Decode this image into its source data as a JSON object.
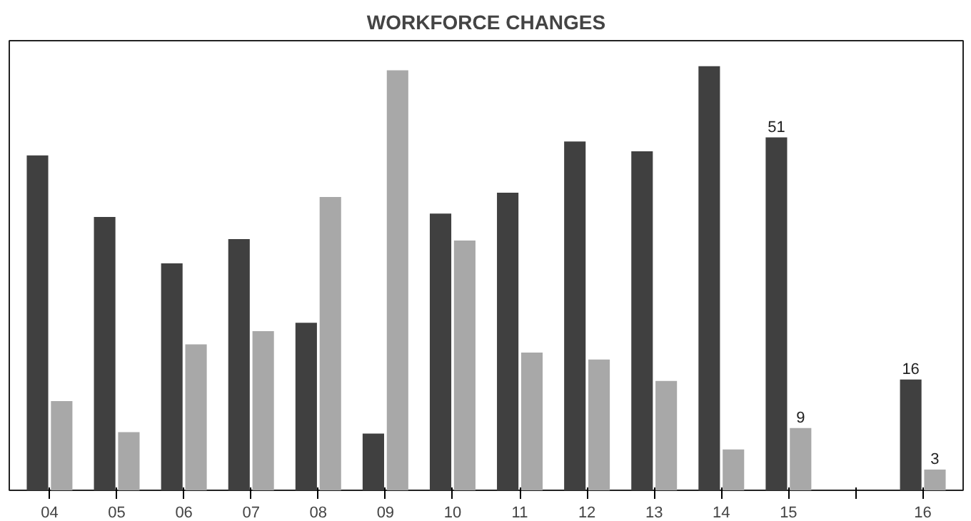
{
  "chart_data": {
    "type": "bar",
    "title": "WORKFORCE CHANGES",
    "categories": [
      "04",
      "05",
      "06",
      "07",
      "08",
      "09",
      "10",
      "11",
      "12",
      "13",
      "14",
      "15",
      null,
      "16"
    ],
    "series": [
      {
        "color": "#404040",
        "values": [
          48.4,
          39.5,
          32.8,
          36.3,
          24.2,
          8.2,
          40,
          43,
          50.4,
          49,
          61.3,
          51,
          null,
          16
        ],
        "value_labels": [
          null,
          null,
          null,
          null,
          null,
          null,
          null,
          null,
          null,
          null,
          null,
          "51",
          null,
          "16"
        ]
      },
      {
        "color": "#a8a8a8",
        "values": [
          12.9,
          8.4,
          21.1,
          23,
          42.4,
          60.7,
          36.1,
          19.9,
          18.9,
          15.8,
          5.9,
          9,
          null,
          3
        ],
        "value_labels": [
          null,
          null,
          null,
          null,
          null,
          null,
          null,
          null,
          null,
          null,
          null,
          "9",
          null,
          "3"
        ]
      }
    ],
    "grid": false
  }
}
